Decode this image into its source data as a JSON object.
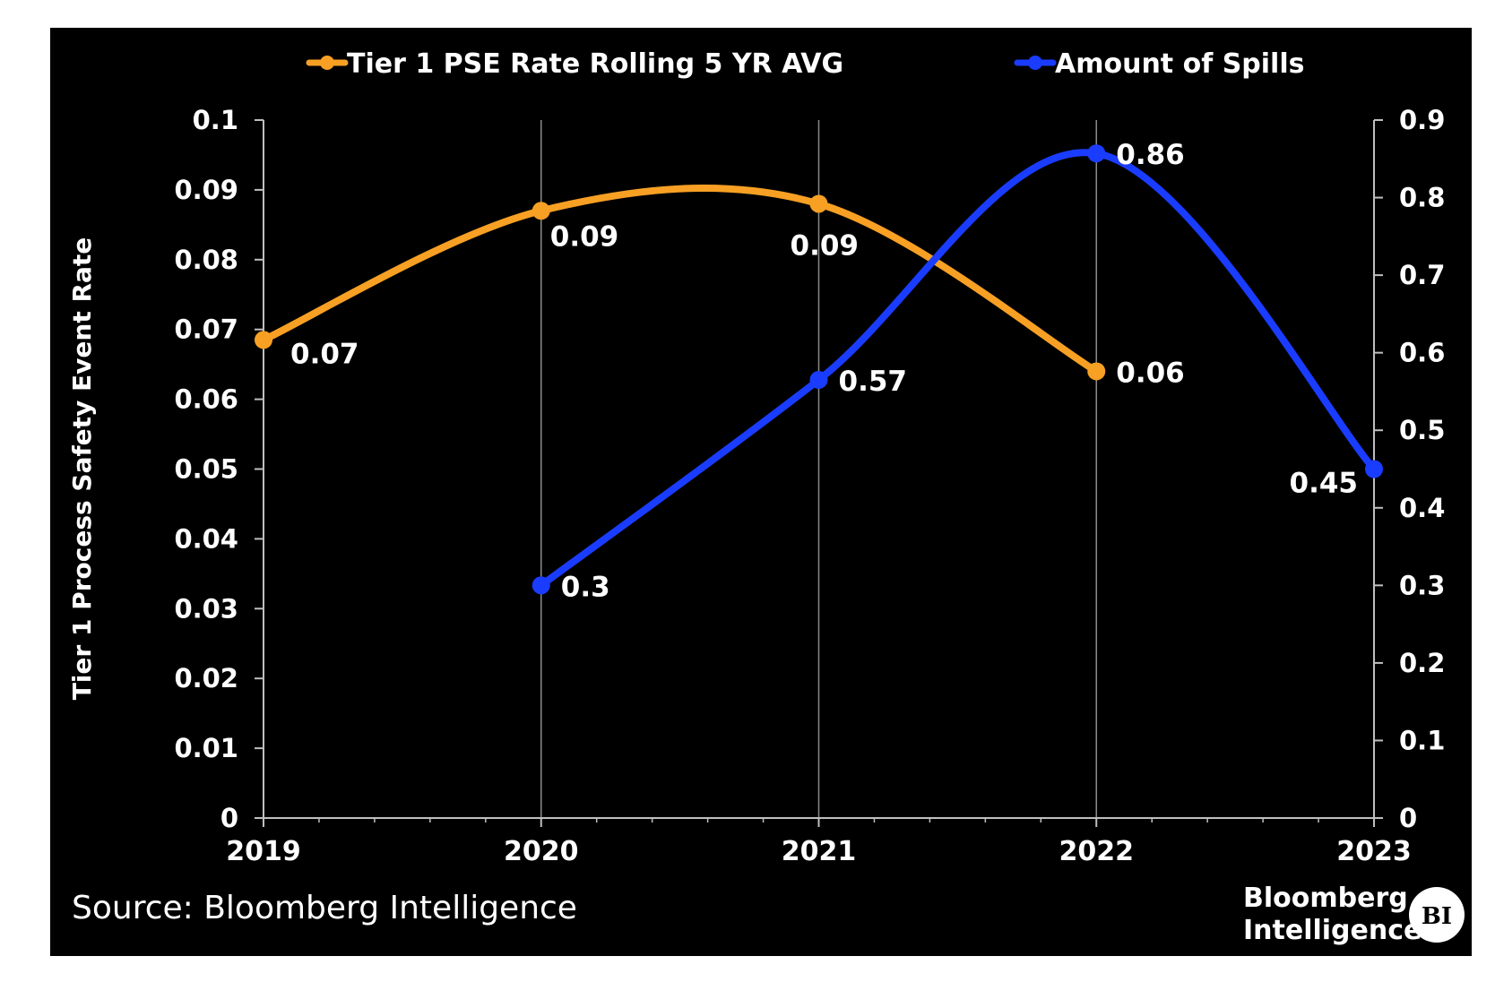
{
  "chart_data": {
    "type": "line",
    "x": [
      "2019",
      "2020",
      "2021",
      "2022",
      "2023"
    ],
    "xlabel": "",
    "ylabel": "Tier 1 Process Safety Event Rate",
    "ylim": [
      0,
      0.1
    ],
    "y_ticks": [
      "0",
      "0.01",
      "0.02",
      "0.03",
      "0.04",
      "0.05",
      "0.06",
      "0.07",
      "0.08",
      "0.09",
      "0.1"
    ],
    "y2label": "",
    "y2lim": [
      0,
      0.9
    ],
    "y2_ticks": [
      "0",
      "0.1",
      "0.2",
      "0.3",
      "0.4",
      "0.5",
      "0.6",
      "0.7",
      "0.8",
      "0.9"
    ],
    "grid": "vertical gridlines at years",
    "legend_position": "top",
    "series": [
      {
        "name": "Tier 1 PSE Rate Rolling 5 YR AVG",
        "axis": "left",
        "color": "#f7a024",
        "points": [
          {
            "x": "2019",
            "y": 0.0685,
            "label": "0.07"
          },
          {
            "x": "2020",
            "y": 0.087,
            "label": "0.09"
          },
          {
            "x": "2021",
            "y": 0.088,
            "label": "0.09"
          },
          {
            "x": "2022",
            "y": 0.064,
            "label": "0.06"
          }
        ]
      },
      {
        "name": "Amount of Spills",
        "axis": "right",
        "color": "#1a3cff",
        "points": [
          {
            "x": "2020",
            "y": 0.3,
            "label": "0.3"
          },
          {
            "x": "2021",
            "y": 0.565,
            "label": "0.57"
          },
          {
            "x": "2022",
            "y": 0.857,
            "label": "0.86"
          },
          {
            "x": "2023",
            "y": 0.45,
            "label": "0.45"
          }
        ]
      }
    ]
  },
  "footer": {
    "source": "Source: Bloomberg Intelligence",
    "brand_line1": "Bloomberg",
    "brand_line2": "Intelligence",
    "badge": "BI"
  }
}
